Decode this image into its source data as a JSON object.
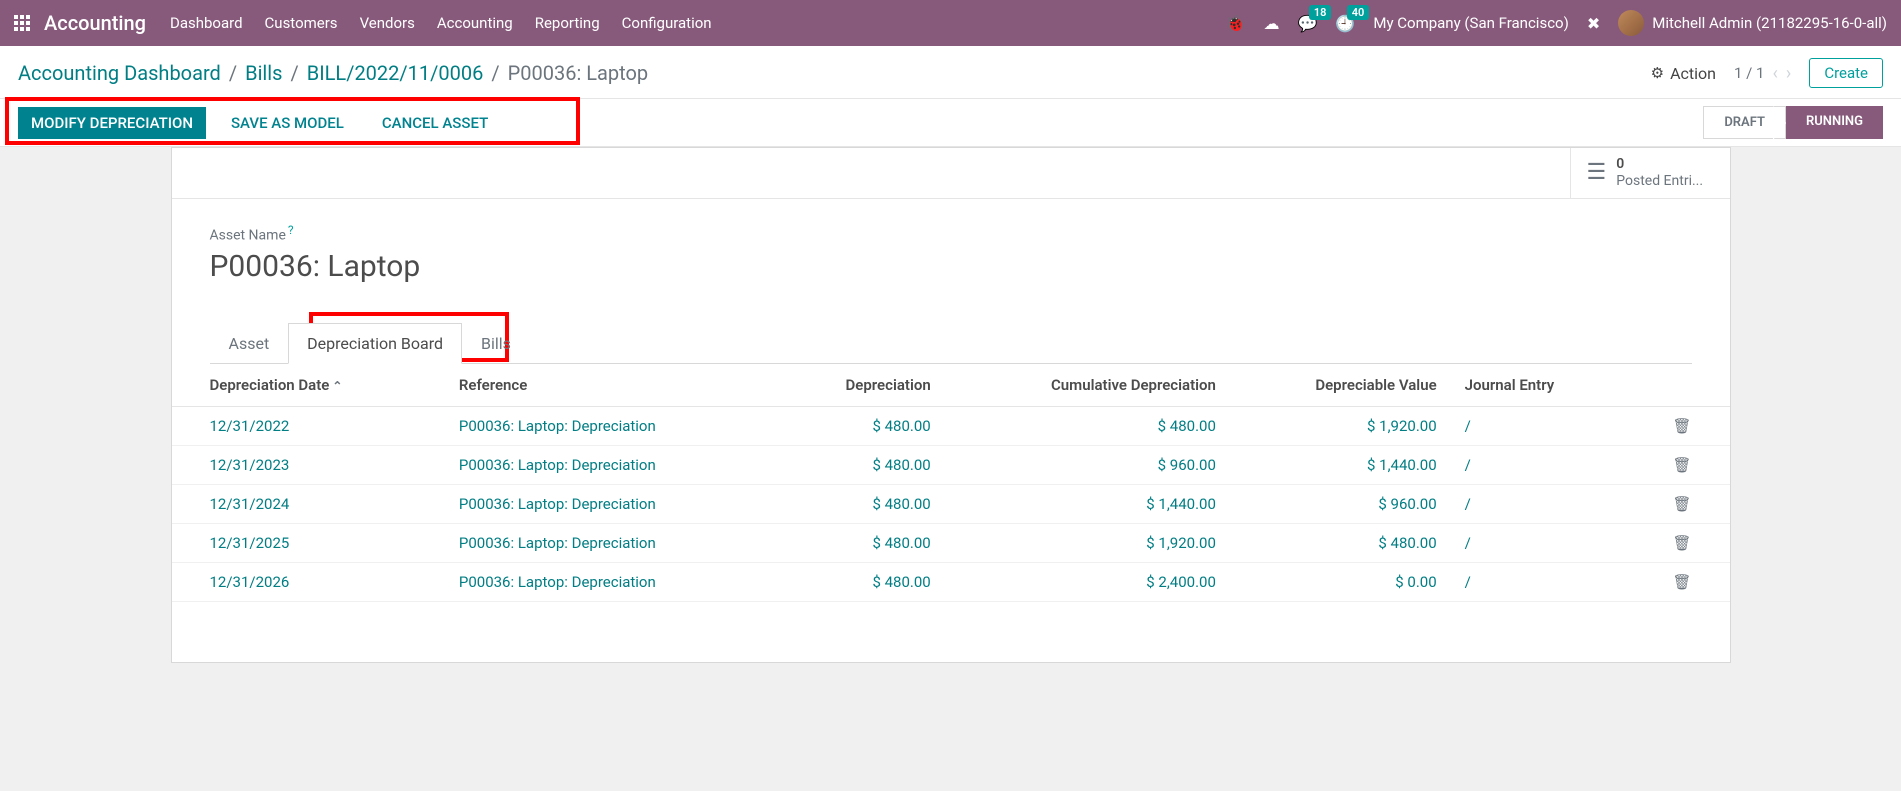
{
  "topnav": {
    "brand": "Accounting",
    "links": [
      "Dashboard",
      "Customers",
      "Vendors",
      "Accounting",
      "Reporting",
      "Configuration"
    ],
    "msg_badge": "18",
    "activity_badge": "40",
    "company": "My Company (San Francisco)",
    "user": "Mitchell Admin (21182295-16-0-all)"
  },
  "breadcrumb": {
    "items": [
      "Accounting Dashboard",
      "Bills",
      "BILL/2022/11/0006"
    ],
    "current": "P00036: Laptop",
    "action": "Action",
    "pager": "1 / 1",
    "create": "Create"
  },
  "statusbar": {
    "modify": "MODIFY DEPRECIATION",
    "save_model": "SAVE AS MODEL",
    "cancel": "CANCEL ASSET",
    "draft": "DRAFT",
    "running": "RUNNING"
  },
  "stat": {
    "count": "0",
    "label": "Posted Entri..."
  },
  "form": {
    "asset_label": "Asset Name",
    "asset_name": "P00036: Laptop"
  },
  "tabs": {
    "asset": "Asset",
    "dep_board": "Depreciation Board",
    "bills": "Bills"
  },
  "columns": {
    "date": "Depreciation Date",
    "ref": "Reference",
    "dep": "Depreciation",
    "cum": "Cumulative Depreciation",
    "val": "Depreciable Value",
    "je": "Journal Entry"
  },
  "rows": [
    {
      "date": "12/31/2022",
      "ref": "P00036: Laptop: Depreciation",
      "dep": "$ 480.00",
      "cum": "$ 480.00",
      "val": "$ 1,920.00",
      "je": "/"
    },
    {
      "date": "12/31/2023",
      "ref": "P00036: Laptop: Depreciation",
      "dep": "$ 480.00",
      "cum": "$ 960.00",
      "val": "$ 1,440.00",
      "je": "/"
    },
    {
      "date": "12/31/2024",
      "ref": "P00036: Laptop: Depreciation",
      "dep": "$ 480.00",
      "cum": "$ 1,440.00",
      "val": "$ 960.00",
      "je": "/"
    },
    {
      "date": "12/31/2025",
      "ref": "P00036: Laptop: Depreciation",
      "dep": "$ 480.00",
      "cum": "$ 1,920.00",
      "val": "$ 480.00",
      "je": "/"
    },
    {
      "date": "12/31/2026",
      "ref": "P00036: Laptop: Depreciation",
      "dep": "$ 480.00",
      "cum": "$ 2,400.00",
      "val": "$ 0.00",
      "je": "/"
    }
  ]
}
